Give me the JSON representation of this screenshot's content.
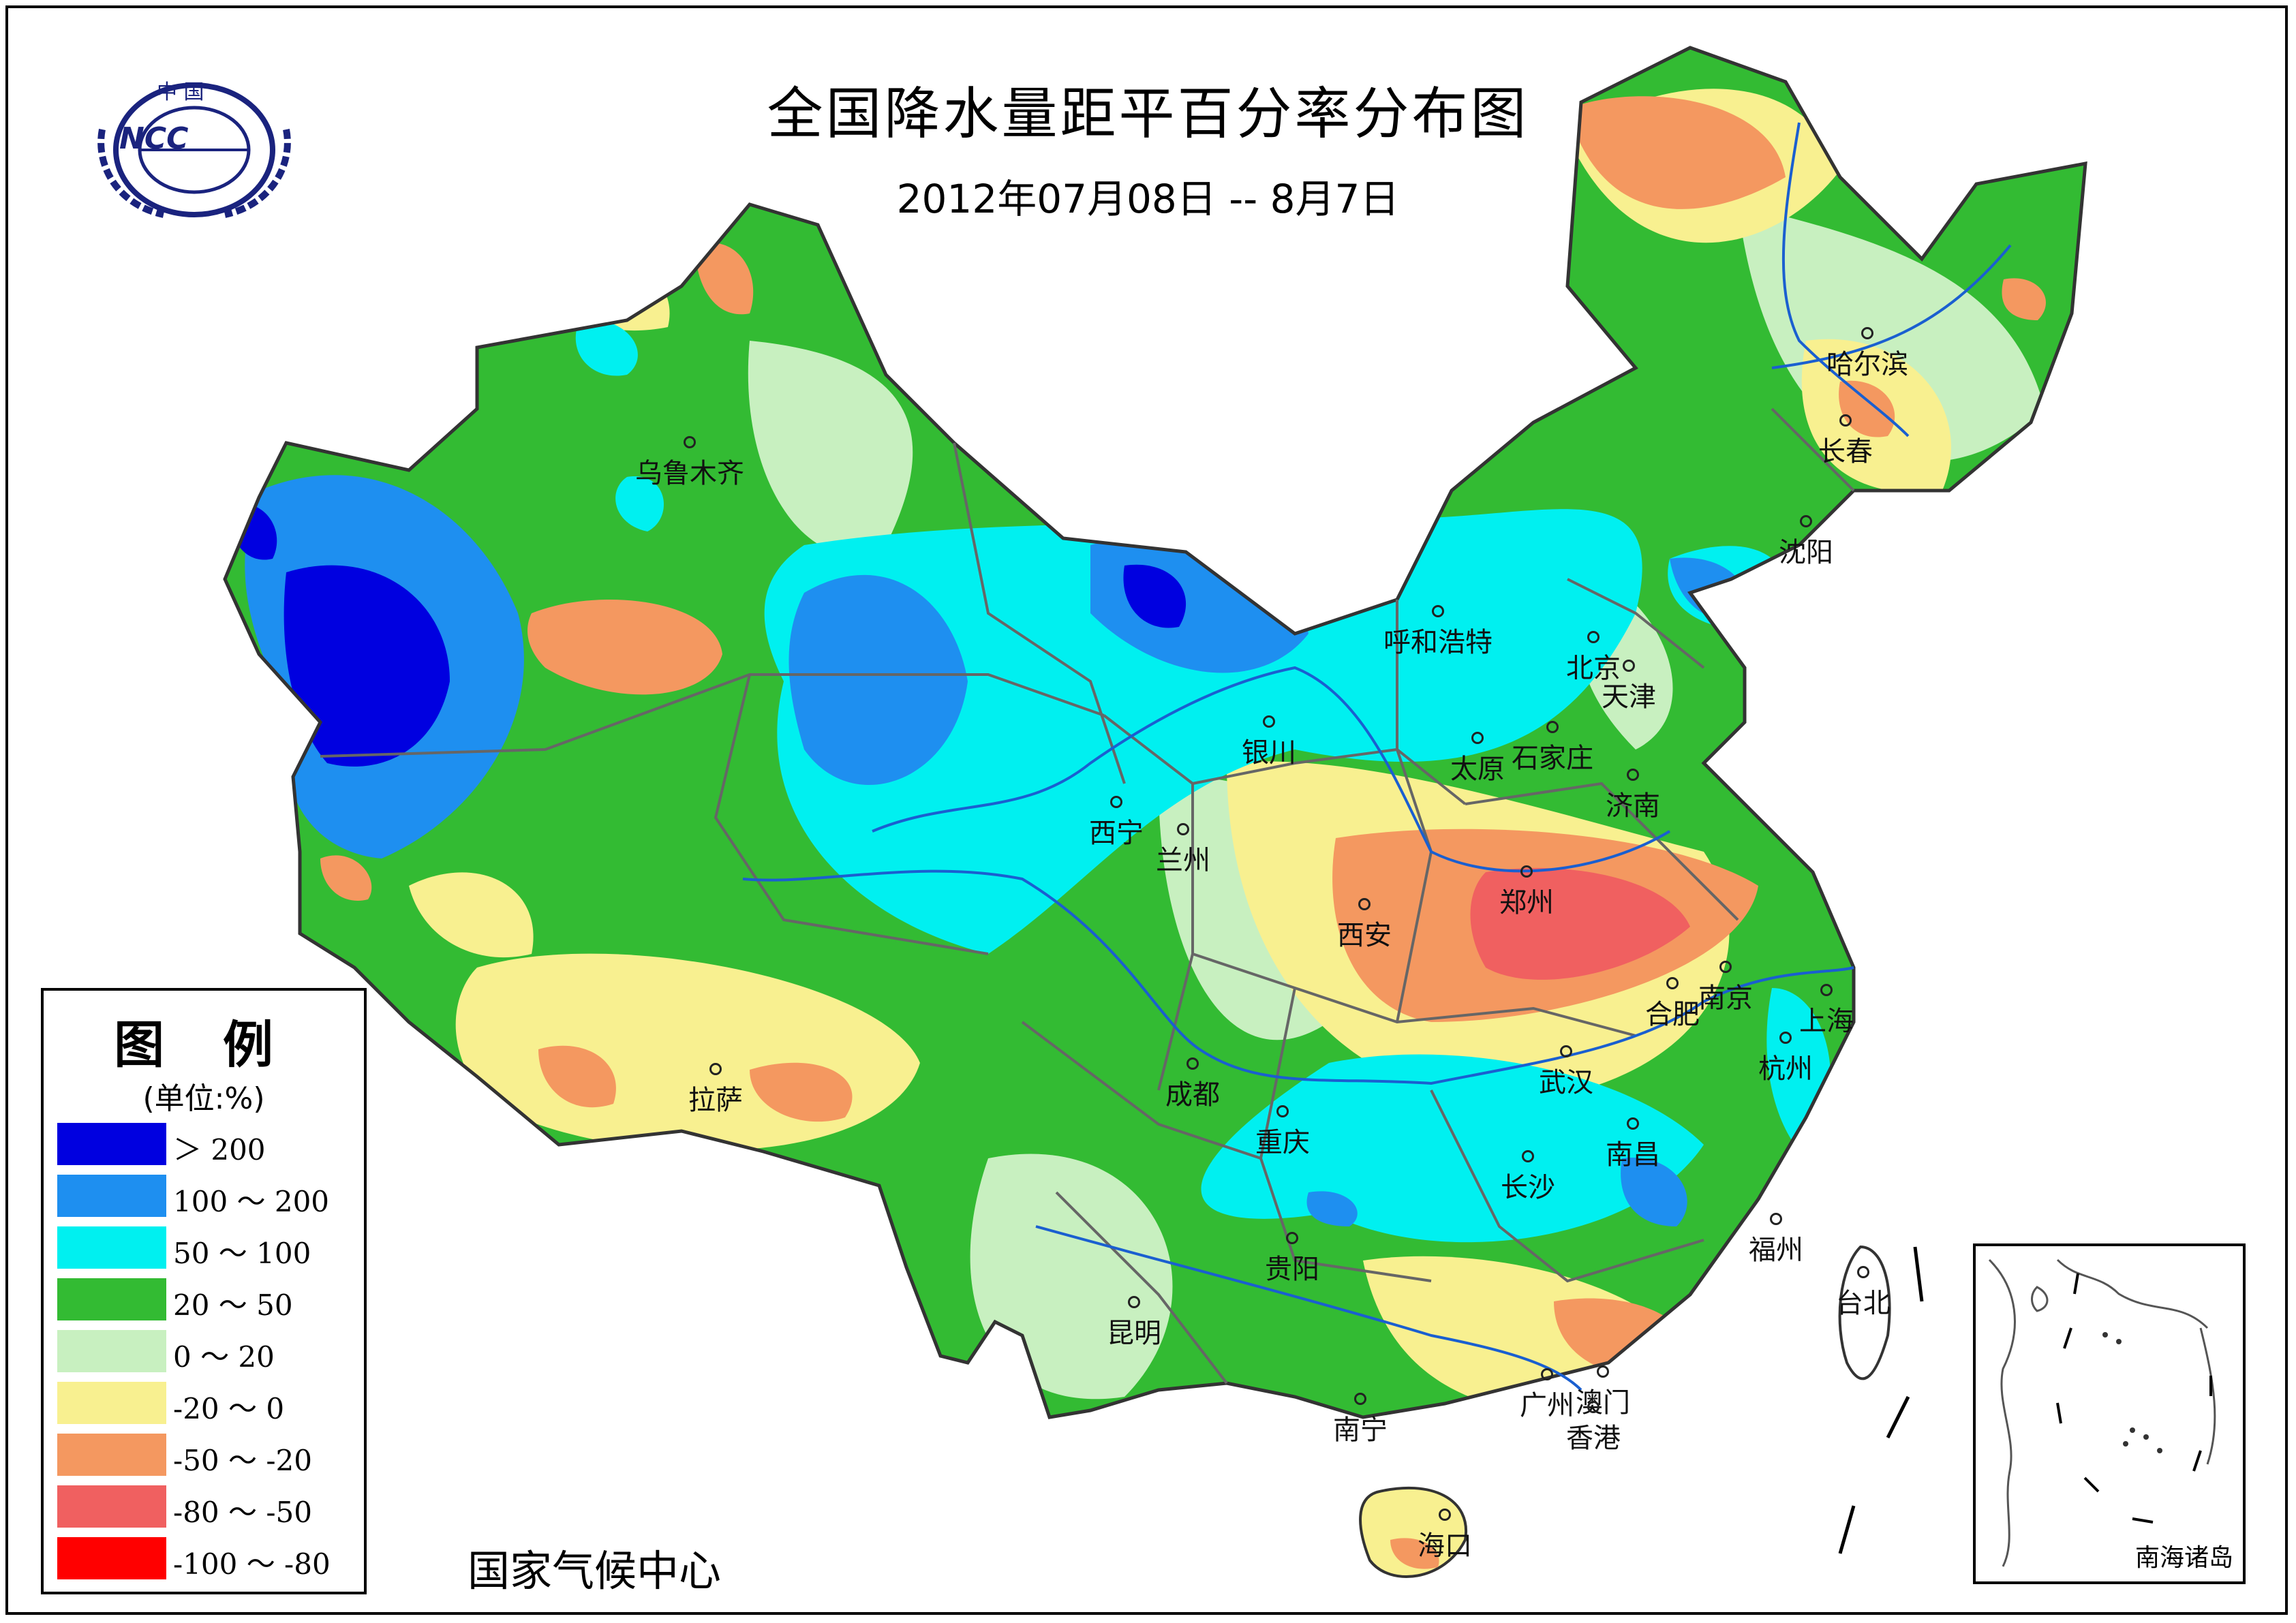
{
  "map": {
    "title": "全国降水量距平百分率分布图",
    "subtitle": "2012年07月08日 -- 8月7日",
    "organization": "国家气候中心",
    "logo": {
      "top_text": "中 国",
      "text": "NCC"
    },
    "inset_label": "南海诸岛"
  },
  "legend": {
    "title": "图 例",
    "unit": "(单位:%)",
    "items": [
      {
        "label": "＞ 200",
        "color": "#0000e0"
      },
      {
        "label": "100 ～ 200",
        "color": "#1e8ff0"
      },
      {
        "label": "50 ～ 100",
        "color": "#00f0f0"
      },
      {
        "label": "20 ～ 50",
        "color": "#33bb33"
      },
      {
        "label": "0 ～ 20",
        "color": "#c8f0c0"
      },
      {
        "label": "-20 ～ 0",
        "color": "#f8f090"
      },
      {
        "label": "-50 ～ -20",
        "color": "#f49860"
      },
      {
        "label": "-80 ～ -50",
        "color": "#f06060"
      },
      {
        "label": "-100 ～ -80",
        "color": "#ff0000"
      }
    ]
  },
  "cities": [
    {
      "name": "乌鲁木齐"
    },
    {
      "name": "哈尔滨"
    },
    {
      "name": "长春"
    },
    {
      "name": "沈阳"
    },
    {
      "name": "呼和浩特"
    },
    {
      "name": "北京"
    },
    {
      "name": "天津"
    },
    {
      "name": "银川"
    },
    {
      "name": "太原"
    },
    {
      "name": "石家庄"
    },
    {
      "name": "济南"
    },
    {
      "name": "西宁"
    },
    {
      "name": "兰州"
    },
    {
      "name": "郑州"
    },
    {
      "name": "西安"
    },
    {
      "name": "合肥"
    },
    {
      "name": "南京"
    },
    {
      "name": "上海"
    },
    {
      "name": "拉萨"
    },
    {
      "name": "成都"
    },
    {
      "name": "武汉"
    },
    {
      "name": "杭州"
    },
    {
      "name": "重庆"
    },
    {
      "name": "南昌"
    },
    {
      "name": "长沙"
    },
    {
      "name": "贵阳"
    },
    {
      "name": "福州"
    },
    {
      "name": "台北"
    },
    {
      "name": "昆明"
    },
    {
      "name": "广州"
    },
    {
      "name": "澳门"
    },
    {
      "name": "南宁"
    },
    {
      "name": "香港"
    },
    {
      "name": "海口"
    }
  ]
}
